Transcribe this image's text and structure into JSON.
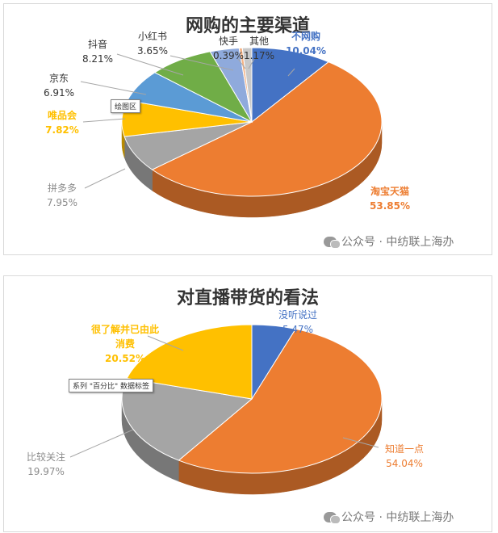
{
  "chart_data": [
    {
      "type": "pie",
      "title": "网购的主要渠道",
      "slices": [
        {
          "name": "不网购",
          "value": 10.04,
          "display": "10.04%",
          "color": "#4472C4",
          "text_color": "#4472C4",
          "bold": true
        },
        {
          "name": "淘宝天猫",
          "value": 53.85,
          "display": "53.85%",
          "color": "#ED7D31",
          "text_color": "#ED7D31",
          "bold": true
        },
        {
          "name": "拼多多",
          "value": 7.95,
          "display": "7.95%",
          "color": "#A5A5A5",
          "text_color": "#8c8c8c",
          "bold": false
        },
        {
          "name": "唯品会",
          "value": 7.82,
          "display": "7.82%",
          "color": "#FFC000",
          "text_color": "#FFC000",
          "bold": true
        },
        {
          "name": "京东",
          "value": 6.91,
          "display": "6.91%",
          "color": "#5B9BD5",
          "text_color": "#333333",
          "bold": false
        },
        {
          "name": "抖音",
          "value": 8.21,
          "display": "8.21%",
          "color": "#70AD47",
          "text_color": "#333333",
          "bold": false
        },
        {
          "name": "小红书",
          "value": 3.65,
          "display": "3.65%",
          "color": "#8FAADC",
          "text_color": "#333333",
          "bold": false
        },
        {
          "name": "快手",
          "value": 0.39,
          "display": "0.39%",
          "color": "#F4B183",
          "text_color": "#333333",
          "bold": false
        },
        {
          "name": "其他",
          "value": 1.17,
          "display": "1.17%",
          "color": "#C9C9C9",
          "text_color": "#333333",
          "bold": false
        }
      ],
      "tooltip": "绘图区"
    },
    {
      "type": "pie",
      "title": "对直播带货的看法",
      "slices": [
        {
          "name": "没听说过",
          "value": 5.47,
          "display": "5.47%",
          "color": "#4472C4",
          "text_color": "#4472C4",
          "bold": false
        },
        {
          "name": "知道一点",
          "value": 54.04,
          "display": "54.04%",
          "color": "#ED7D31",
          "text_color": "#ED7D31",
          "bold": false
        },
        {
          "name": "比较关注",
          "value": 19.97,
          "display": "19.97%",
          "color": "#A5A5A5",
          "text_color": "#8c8c8c",
          "bold": false
        },
        {
          "name": "很了解并已由此消费",
          "value": 20.52,
          "display": "20.52%",
          "color": "#FFC000",
          "text_color": "#FFC000",
          "bold": true
        }
      ],
      "tooltip": "系列 \"百分比\" 数据标签"
    }
  ],
  "watermark": "公众号 · 中纺联上海办"
}
